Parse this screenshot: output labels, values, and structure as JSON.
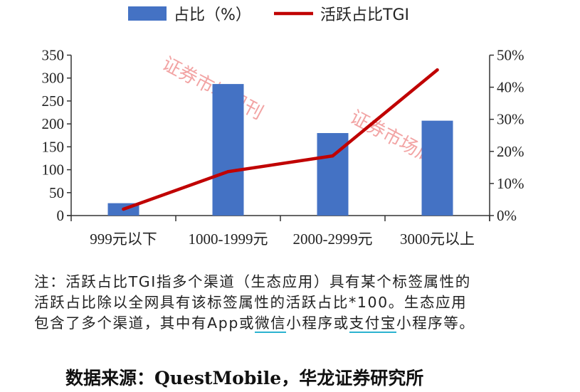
{
  "chart_data": {
    "type": "bar+line",
    "categories": [
      "999元以下",
      "1000-1999元",
      "2000-2999元",
      "3000元以上"
    ],
    "series": [
      {
        "name": "占比（%）",
        "type": "bar",
        "axis": "left",
        "color": "#4472c4",
        "values": [
          27,
          287,
          180,
          207
        ]
      },
      {
        "name": "活跃占比TGI",
        "type": "line",
        "axis": "right",
        "color": "#c00000",
        "values": [
          2.0,
          13.7,
          18.6,
          45.4
        ]
      }
    ],
    "left_axis": {
      "ylim": [
        0,
        350
      ],
      "ticks": [
        "0",
        "50",
        "100",
        "150",
        "200",
        "250",
        "300",
        "350"
      ]
    },
    "right_axis": {
      "ylim": [
        0,
        50
      ],
      "ticks": [
        "0%",
        "10%",
        "20%",
        "30%",
        "40%",
        "50%"
      ]
    },
    "legend_placement": "top",
    "grid": false,
    "watermark": "证券市场周刊"
  },
  "note": {
    "line1": "注：活跃占比TGI指多个渠道（生态应用）具有某个标签属性的",
    "line2": "活跃占比除以全网具有该标签属性的活跃占比*100。生态应用",
    "line3_a": "包含了多个渠道，其中有App或",
    "line3_b": "微信",
    "line3_c": "小程序或",
    "line3_d": "支付宝",
    "line3_e": "小程序等。"
  },
  "source": "数据来源：QuestMobile，华龙证券研究所"
}
